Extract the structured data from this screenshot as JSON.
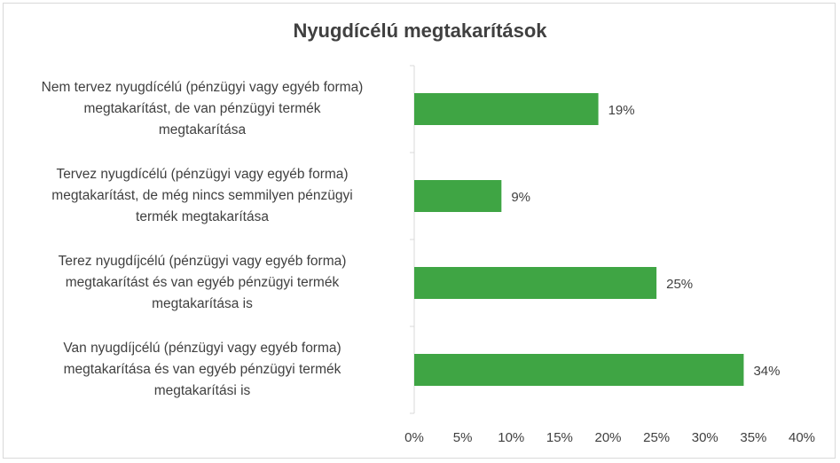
{
  "chart_data": {
    "type": "bar",
    "orientation": "horizontal",
    "title": "Nyugdícélú megtakarítások",
    "categories": [
      "Nem tervez nyugdícélú (pénzügyi vagy egyéb forma) megtakarítást, de van pénzügyi termék megtakarítása",
      "Tervez nyugdícélú (pénzügyi vagy egyéb forma) megtakarítást, de még nincs semmilyen pénzügyi termék megtakarítása",
      "Terez nyugdíjcélú (pénzügyi vagy egyéb forma) megtakarítást és van egyéb pénzügyi termék megtakarítása is",
      "Van nyugdíjcélú (pénzügyi vagy egyéb forma) megtakarítása és van egyéb pénzügyi termék megtakarítási is"
    ],
    "category_lines": [
      [
        "Nem tervez nyugdícélú (pénzügyi vagy egyéb forma)",
        "megtakarítást, de van pénzügyi termék",
        "megtakarítása"
      ],
      [
        "Tervez nyugdícélú (pénzügyi vagy egyéb forma)",
        "megtakarítást, de még nincs semmilyen pénzügyi",
        "termék megtakarítása"
      ],
      [
        "Terez nyugdíjcélú (pénzügyi vagy egyéb forma)",
        "megtakarítást és van egyéb pénzügyi termék",
        "megtakarítása is"
      ],
      [
        "Van nyugdíjcélú (pénzügyi vagy egyéb forma)",
        "megtakarítása és van egyéb pénzügyi termék",
        "megtakarítási is"
      ]
    ],
    "values": [
      19,
      9,
      25,
      34
    ],
    "value_labels": [
      "19%",
      "9%",
      "25%",
      "34%"
    ],
    "xlim": [
      0,
      40
    ],
    "x_ticks": [
      0,
      5,
      10,
      15,
      20,
      25,
      30,
      35,
      40
    ],
    "x_tick_labels": [
      "0%",
      "5%",
      "10%",
      "15%",
      "20%",
      "25%",
      "30%",
      "35%",
      "40%"
    ],
    "grid": false,
    "legend": "none",
    "bar_color": "#3fa544"
  }
}
